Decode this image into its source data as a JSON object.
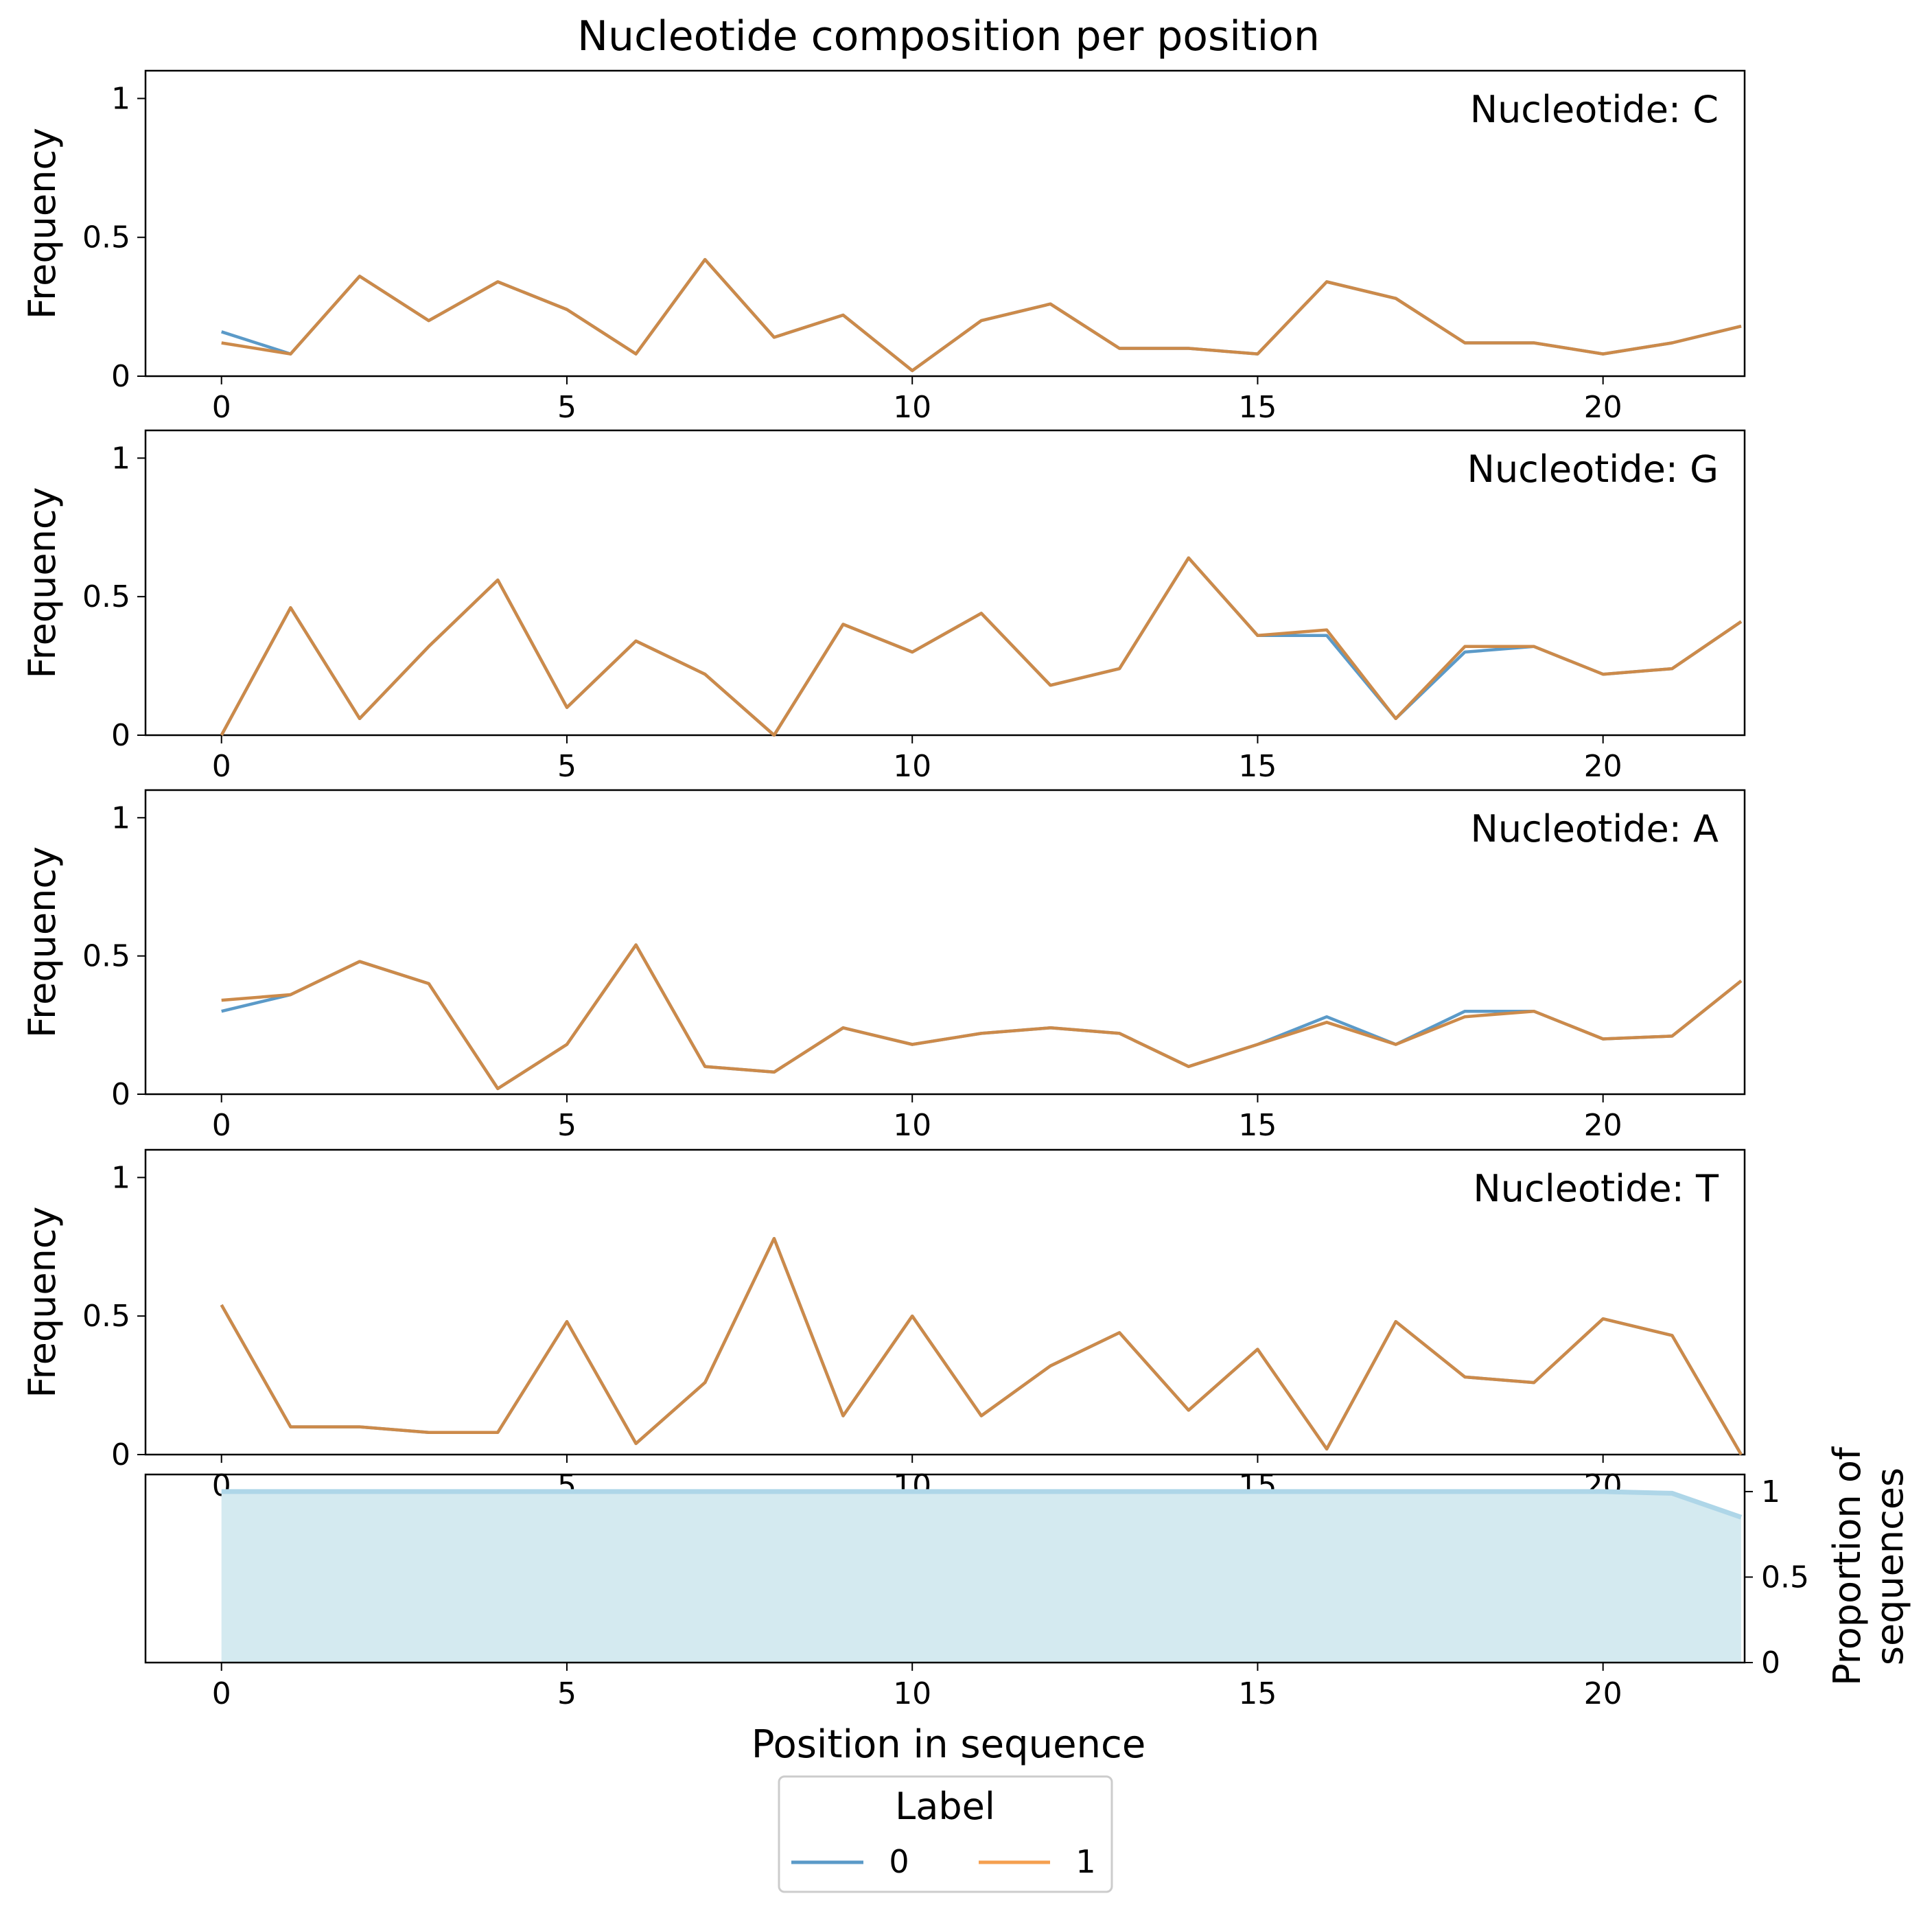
{
  "chart_data": {
    "title": "Nucleotide composition per position",
    "type": "line",
    "x": [
      0,
      1,
      2,
      3,
      4,
      5,
      6,
      7,
      8,
      9,
      10,
      11,
      12,
      13,
      14,
      15,
      16,
      17,
      18,
      19,
      20,
      21,
      22
    ],
    "xticks": [
      "0",
      "5",
      "10",
      "15",
      "20"
    ],
    "series_colors": {
      "0": "#5b9ac8",
      "1": "#f5a050",
      "overlap": "#cc8a4a"
    },
    "panels": [
      {
        "nucleotide_label": "Nucleotide: C",
        "ylabel": "Frequency",
        "ylim": [
          0,
          1.1
        ],
        "yticks": [
          "0",
          "0.5",
          "1"
        ],
        "series": [
          {
            "name": "0",
            "values": [
              0.16,
              0.08,
              0.36,
              0.2,
              0.34,
              0.24,
              0.08,
              0.42,
              0.14,
              0.22,
              0.02,
              0.2,
              0.26,
              0.1,
              0.1,
              0.08,
              0.34,
              0.28,
              0.12,
              0.12,
              0.08,
              0.12,
              0.18
            ]
          },
          {
            "name": "1",
            "values": [
              0.12,
              0.08,
              0.36,
              0.2,
              0.34,
              0.24,
              0.08,
              0.42,
              0.14,
              0.22,
              0.02,
              0.2,
              0.26,
              0.1,
              0.1,
              0.08,
              0.34,
              0.28,
              0.12,
              0.12,
              0.08,
              0.12,
              0.18
            ]
          }
        ]
      },
      {
        "nucleotide_label": "Nucleotide: G",
        "ylabel": "Frequency",
        "ylim": [
          0,
          1.1
        ],
        "yticks": [
          "0",
          "0.5",
          "1"
        ],
        "series": [
          {
            "name": "0",
            "values": [
              0.0,
              0.46,
              0.06,
              0.32,
              0.56,
              0.1,
              0.34,
              0.22,
              0.0,
              0.4,
              0.3,
              0.44,
              0.18,
              0.24,
              0.64,
              0.36,
              0.36,
              0.06,
              0.3,
              0.32,
              0.22,
              0.24,
              0.41
            ]
          },
          {
            "name": "1",
            "values": [
              0.0,
              0.46,
              0.06,
              0.32,
              0.56,
              0.1,
              0.34,
              0.22,
              0.0,
              0.4,
              0.3,
              0.44,
              0.18,
              0.24,
              0.64,
              0.36,
              0.38,
              0.06,
              0.32,
              0.32,
              0.22,
              0.24,
              0.41
            ]
          }
        ]
      },
      {
        "nucleotide_label": "Nucleotide: A",
        "ylabel": "Frequency",
        "ylim": [
          0,
          1.1
        ],
        "yticks": [
          "0",
          "0.5",
          "1"
        ],
        "series": [
          {
            "name": "0",
            "values": [
              0.3,
              0.36,
              0.48,
              0.4,
              0.02,
              0.18,
              0.54,
              0.1,
              0.08,
              0.24,
              0.18,
              0.22,
              0.24,
              0.22,
              0.1,
              0.18,
              0.28,
              0.18,
              0.3,
              0.3,
              0.2,
              0.21,
              0.41
            ]
          },
          {
            "name": "1",
            "values": [
              0.34,
              0.36,
              0.48,
              0.4,
              0.02,
              0.18,
              0.54,
              0.1,
              0.08,
              0.24,
              0.18,
              0.22,
              0.24,
              0.22,
              0.1,
              0.18,
              0.26,
              0.18,
              0.28,
              0.3,
              0.2,
              0.21,
              0.41
            ]
          }
        ]
      },
      {
        "nucleotide_label": "Nucleotide: T",
        "ylabel": "Frequency",
        "ylim": [
          0,
          1.1
        ],
        "yticks": [
          "0",
          "0.5",
          "1"
        ],
        "series": [
          {
            "name": "0",
            "values": [
              0.54,
              0.1,
              0.1,
              0.08,
              0.08,
              0.48,
              0.04,
              0.26,
              0.78,
              0.14,
              0.5,
              0.14,
              0.32,
              0.44,
              0.16,
              0.38,
              0.02,
              0.48,
              0.28,
              0.26,
              0.49,
              0.43,
              0.0
            ]
          },
          {
            "name": "1",
            "values": [
              0.54,
              0.1,
              0.1,
              0.08,
              0.08,
              0.48,
              0.04,
              0.26,
              0.78,
              0.14,
              0.5,
              0.14,
              0.32,
              0.44,
              0.16,
              0.38,
              0.02,
              0.48,
              0.28,
              0.26,
              0.49,
              0.43,
              0.0
            ]
          }
        ]
      }
    ],
    "proportion_panel": {
      "type": "area",
      "ylabel": "Proportion of sequences",
      "ylabel_lines": [
        "Proportion of",
        "sequences"
      ],
      "ylim": [
        0,
        1.1
      ],
      "yticks": [
        "0",
        "0.5",
        "1"
      ],
      "values": [
        1,
        1,
        1,
        1,
        1,
        1,
        1,
        1,
        1,
        1,
        1,
        1,
        1,
        1,
        1,
        1,
        1,
        1,
        1,
        1,
        1,
        0.99,
        0.85
      ],
      "fill_color": "#d4eaf0",
      "line_color": "#aed6e8"
    },
    "xlabel": "Position in sequence",
    "legend": {
      "title": "Label",
      "entries": [
        "0",
        "1"
      ],
      "placement": "bottom-center"
    }
  }
}
